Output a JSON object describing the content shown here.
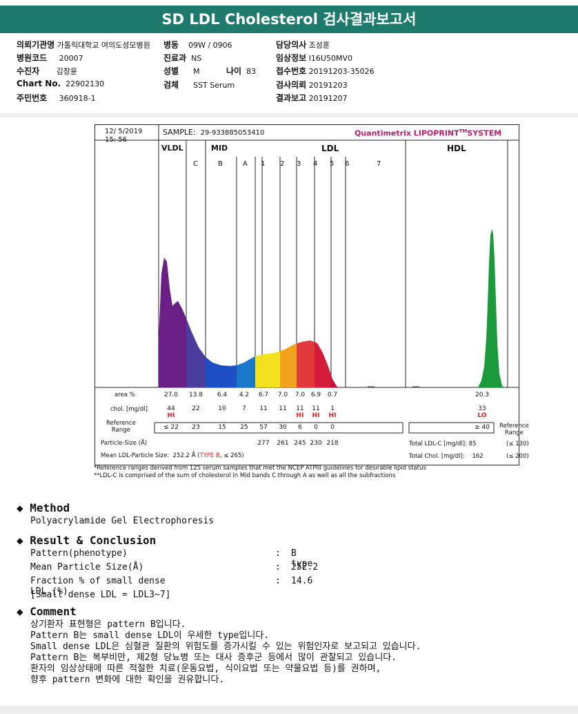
{
  "title": "SD LDL Cholesterol 검사결과보고서",
  "header": {
    "fields": [
      {
        "label": "의뢰기관명",
        "value": "가톨릭대학교 여의도성모병원"
      },
      {
        "label": "병동",
        "value": "09W / 0906"
      },
      {
        "label": "담당의사",
        "value": "조성훈"
      },
      {
        "label": "병원코드",
        "value": "20007"
      },
      {
        "label": "진료과",
        "value": "NS"
      },
      {
        "label": "임상정보",
        "value": "I16U50MV0"
      },
      {
        "label": "수진자",
        "value": "김창윤"
      },
      {
        "label": "성별",
        "value": "M"
      },
      {
        "label": "나이",
        "value": "83"
      },
      {
        "label": "접수번호",
        "value": "20191203-35026"
      },
      {
        "label": "Chart No.",
        "value": "22902130"
      },
      {
        "label": "검체",
        "value": "SST Serum"
      },
      {
        "label": "검사의뢰",
        "value": "20191203"
      },
      {
        "label": "주민번호",
        "value": "360918-1"
      },
      {
        "label": "결과보고",
        "value": "20191207"
      }
    ]
  },
  "chart": {
    "date": "12/ 5/2019",
    "time": "15: 56",
    "sample_label": "SAMPLE:",
    "sample_id": "29-933885053410",
    "brand": "Quantimetrix LIPOPRINT",
    "brand_tm": "TM",
    "brand_suffix": "SYSTEM",
    "groups": [
      "VLDL",
      "MID",
      "LDL",
      "HDL"
    ],
    "bands": [
      "C",
      "B",
      "A",
      "1",
      "2",
      "3",
      "4",
      "5",
      "6",
      "7"
    ],
    "row_labels": {
      "area": "area %",
      "chol": "chol. [mg/dl]",
      "ref": "Reference Range",
      "ref_line1": "Reference",
      "ref_line2": "Range",
      "psize": "Particle-Size (Å)",
      "mean": "Mean LDL-Particle Size:",
      "hdl_ref1": "Reference",
      "hdl_ref2": "Range"
    },
    "area": [
      "27.0",
      "13.8",
      "6.4",
      "4.2",
      "6.7",
      "7.0",
      "7.0",
      "6.9",
      "0.7",
      "20.3"
    ],
    "chol": [
      "44",
      "22",
      "10",
      "7",
      "11",
      "11",
      "11",
      "11",
      "1",
      "33"
    ],
    "flags": [
      "HI",
      "",
      "",
      "",
      "",
      "",
      "HI",
      "HI",
      "HI",
      "LO"
    ],
    "ref": [
      "≤ 22",
      "23",
      "15",
      "25",
      "57",
      "30",
      "6",
      "0",
      "0",
      "≥ 40"
    ],
    "particle_size": [
      "277",
      "261",
      "245",
      "230",
      "218"
    ],
    "mean_value": "252.2 Å",
    "mean_type": "TYPE B",
    "mean_ref": "≤ 265",
    "total_ldl_label": "Total LDL-C [mg/dl]:",
    "total_ldl": "85",
    "total_ldl_ref": "(≤ 130)",
    "total_chol_label": "Total Chol. [mg/dl]:",
    "total_chol": "162",
    "total_chol_ref": "(≤ 200)",
    "footnote1": "*Reference ranges derived from 125 serum samples that met the NCEP ATPIII guidelines for desirable lipid status",
    "footnote2": "**LDL-C is comprised of the sum of cholesterol in Mid bands C through A as well as all the subfractions",
    "colors": {
      "vldl": "#6a1f86",
      "mid_c": "#4b3d9e",
      "mid_b": "#1f4fc4",
      "mid_a": "#1a78c8",
      "ldl1": "#f2e21e",
      "ldl2": "#f0a21c",
      "ldl3": "#e03a3a",
      "ldl4": "#d41c3a",
      "ldl5": "#c81040",
      "hdl": "#1a9a3a",
      "brand": "#b81c6a",
      "flag": "#e02020",
      "type": "#e02020"
    }
  },
  "method": {
    "heading": "Method",
    "text": "Polyacrylamide Gel Electrophoresis"
  },
  "result": {
    "heading": "Result & Conclusion",
    "rows": [
      {
        "label": "Pattern(phenotype)",
        "sep": ":",
        "value": "B type"
      },
      {
        "label": "Mean Particle Size(Å)",
        "sep": ":",
        "value": "252.2"
      },
      {
        "label": "Fraction % of small dense LDL (%)",
        "sep": ":",
        "value": "14.6"
      }
    ],
    "note": "[Small dense LDL = LDL3~7]"
  },
  "comment": {
    "heading": "Comment",
    "lines": [
      "상기환자 표현형은 pattern B입니다.",
      "Pattern B는 small dense LDL이 우세한 type입니다.",
      "Small dense LDL은 심혈관 질환의 위험도를 증가시킬 수 있는 위험인자로 보고되고 있습니다.",
      "Pattern B는 복부비만, 제2형 당뇨병 또는 대사 증후군 등에서 많이 관찰되고 있습니다.",
      "환자의 임상상태에 따른 적절한 치료(운동요법, 식이요법 또는 약물요법 등)를 권하며,",
      "향후 pattern 변화에 대한 확인을 권유합니다."
    ]
  }
}
